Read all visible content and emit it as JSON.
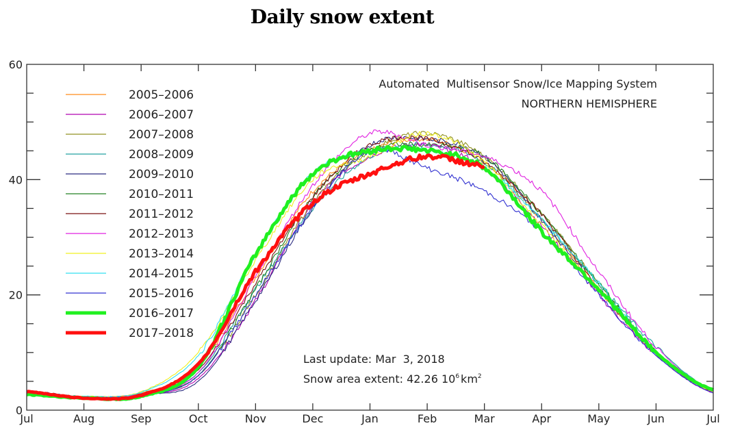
{
  "chart_data": {
    "type": "line",
    "title": "Daily snow extent",
    "xlabel": "",
    "ylabel": "",
    "ylim": [
      0,
      60
    ],
    "yticks": [
      0,
      20,
      40,
      60
    ],
    "yminor_step": 5,
    "xticks": [
      "Jul",
      "Aug",
      "Sep",
      "Oct",
      "Nov",
      "Dec",
      "Jan",
      "Feb",
      "Mar",
      "Apr",
      "May",
      "Jun",
      "Jul"
    ],
    "grid": false,
    "legend_position": "top-left",
    "annotations": {
      "system": "Automated  Multisensor Snow/Ice Mapping System",
      "region": "NORTHERN HEMISPHERE",
      "last_update": "Last update: Mar  3, 2018",
      "extent_label": "Snow area extent: 42.26 10",
      "extent_sup": "6",
      "extent_unit": "km",
      "extent_unit_sup": "2"
    },
    "x_month_index_note": "values sampled at month starts, index 0 = Jul .. 12 = Jul",
    "series": [
      {
        "name": "2005–2006",
        "color": "#ff8c1a",
        "thick": false,
        "values": [
          3.0,
          2.3,
          3.0,
          7.5,
          23,
          38,
          45,
          47,
          43,
          33,
          21,
          10,
          3.2
        ]
      },
      {
        "name": "2006–2007",
        "color": "#b000b0",
        "thick": false,
        "values": [
          3.0,
          2.2,
          2.6,
          5.5,
          19,
          36,
          44,
          46,
          42,
          32,
          20,
          9.5,
          3.0
        ]
      },
      {
        "name": "2007–2008",
        "color": "#909020",
        "thick": false,
        "values": [
          3.0,
          2.2,
          2.8,
          6.0,
          20,
          36,
          45,
          48,
          44,
          34,
          22,
          10,
          3.2
        ]
      },
      {
        "name": "2008–2009",
        "color": "#20a0a0",
        "thick": false,
        "values": [
          3.2,
          2.4,
          2.8,
          6.5,
          21,
          35,
          44,
          46,
          43,
          33,
          22,
          11,
          3.5
        ]
      },
      {
        "name": "2009–2010",
        "color": "#2a2a80",
        "thick": false,
        "values": [
          3.4,
          2.3,
          2.7,
          5.0,
          19,
          35,
          46,
          47,
          44,
          33,
          21,
          10,
          3.3
        ]
      },
      {
        "name": "2010–2011",
        "color": "#208020",
        "thick": false,
        "values": [
          3.0,
          2.2,
          2.7,
          6.0,
          21,
          37,
          45,
          46,
          44,
          34,
          22,
          10,
          3.2
        ]
      },
      {
        "name": "2011–2012",
        "color": "#7a1010",
        "thick": false,
        "values": [
          3.1,
          2.3,
          2.9,
          7.0,
          22,
          37,
          46,
          47,
          43,
          34,
          21,
          10,
          3.2
        ]
      },
      {
        "name": "2012–2013",
        "color": "#e020e0",
        "thick": false,
        "values": [
          3.0,
          2.3,
          2.8,
          6.5,
          23,
          39,
          48,
          46,
          44,
          38,
          24,
          11,
          3.3
        ]
      },
      {
        "name": "2013–2014",
        "color": "#f0f020",
        "thick": false,
        "values": [
          3.0,
          2.4,
          3.2,
          10.0,
          26,
          40,
          44,
          48,
          43,
          32,
          21,
          10,
          3.2
        ]
      },
      {
        "name": "2014–2015",
        "color": "#30e0f0",
        "thick": false,
        "values": [
          3.0,
          2.4,
          3.1,
          9.5,
          27,
          41,
          45,
          45,
          42,
          33,
          22,
          10,
          3.3
        ]
      },
      {
        "name": "2015–2016",
        "color": "#3030d0",
        "thick": false,
        "values": [
          3.1,
          2.3,
          2.6,
          6.0,
          20,
          35,
          45,
          42,
          38,
          31,
          20,
          9.5,
          3.0
        ]
      },
      {
        "name": "2016–2017",
        "color": "#20f020",
        "thick": true,
        "values": [
          2.7,
          2.1,
          2.4,
          7.5,
          27,
          41,
          45,
          45,
          42,
          31,
          21,
          10,
          3.5
        ]
      },
      {
        "name": "2017–2018",
        "color": "#ff1010",
        "thick": true,
        "values": [
          3.2,
          2.1,
          2.6,
          8.0,
          24,
          36,
          41,
          44,
          42.3
        ]
      }
    ]
  }
}
